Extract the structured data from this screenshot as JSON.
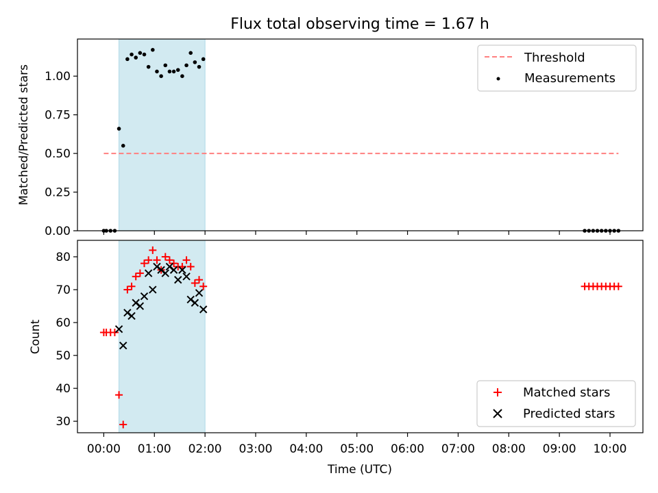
{
  "chart_data": [
    {
      "type": "scatter",
      "title": "Flux total observing time = 1.67 h",
      "xlabel": "",
      "ylabel": "Matched/Predicted stars",
      "ylim": [
        0,
        1.24
      ],
      "xlim_hours": [
        -0.52,
        10.65
      ],
      "yticks": [
        0.0,
        0.25,
        0.5,
        0.75,
        1.0
      ],
      "ytick_labels": [
        "0.00",
        "0.25",
        "0.50",
        "0.75",
        "1.00"
      ],
      "highlight_span": {
        "start": "00:18",
        "end": "02:00",
        "color": "#add8e6"
      },
      "threshold": {
        "name": "Threshold",
        "y": 0.5,
        "x_start": "00:00",
        "x_end": "10:10",
        "color": "#ff7f7f",
        "style": "dashed"
      },
      "legend": {
        "position": "top-right",
        "entries": [
          "Threshold",
          "Measurements"
        ]
      },
      "series": [
        {
          "name": "Measurements",
          "color": "#000000",
          "marker": "dot",
          "x": [
            "00:00",
            "00:03",
            "00:08",
            "00:13",
            "00:18",
            "00:23",
            "00:28",
            "00:33",
            "00:38",
            "00:43",
            "00:48",
            "00:53",
            "00:58",
            "01:03",
            "01:08",
            "01:13",
            "01:18",
            "01:23",
            "01:28",
            "01:33",
            "01:38",
            "01:43",
            "01:48",
            "01:53",
            "01:58",
            "09:30",
            "09:35",
            "09:40",
            "09:45",
            "09:50",
            "09:55",
            "10:00",
            "10:05",
            "10:10"
          ],
          "y": [
            0,
            0,
            0,
            0,
            0.66,
            0.55,
            1.11,
            1.14,
            1.12,
            1.15,
            1.14,
            1.06,
            1.17,
            1.03,
            1.0,
            1.07,
            1.03,
            1.03,
            1.04,
            1.0,
            1.07,
            1.15,
            1.09,
            1.06,
            1.11,
            0,
            0,
            0,
            0,
            0,
            0,
            0,
            0,
            0
          ]
        }
      ]
    },
    {
      "type": "scatter",
      "title": "",
      "xlabel": "Time (UTC)",
      "ylabel": "Count",
      "ylim": [
        26.5,
        85
      ],
      "xlim_hours": [
        -0.52,
        10.65
      ],
      "yticks": [
        30,
        40,
        50,
        60,
        70,
        80
      ],
      "ytick_labels": [
        "30",
        "40",
        "50",
        "60",
        "70",
        "80"
      ],
      "xtick_labels": [
        "00:00",
        "01:00",
        "02:00",
        "03:00",
        "04:00",
        "05:00",
        "06:00",
        "07:00",
        "08:00",
        "09:00",
        "10:00"
      ],
      "highlight_span": {
        "start": "00:18",
        "end": "02:00",
        "color": "#add8e6"
      },
      "legend": {
        "position": "bottom-right",
        "entries": [
          "Matched stars",
          "Predicted stars"
        ]
      },
      "series": [
        {
          "name": "Matched stars",
          "color": "#ff0000",
          "marker": "plus",
          "x": [
            "00:00",
            "00:03",
            "00:08",
            "00:13",
            "00:18",
            "00:23",
            "00:28",
            "00:33",
            "00:38",
            "00:43",
            "00:48",
            "00:53",
            "00:58",
            "01:03",
            "01:08",
            "01:13",
            "01:18",
            "01:23",
            "01:28",
            "01:33",
            "01:38",
            "01:43",
            "01:48",
            "01:53",
            "01:58",
            "09:30",
            "09:35",
            "09:40",
            "09:45",
            "09:50",
            "09:55",
            "10:00",
            "10:05",
            "10:10"
          ],
          "y": [
            57,
            57,
            57,
            57,
            38,
            29,
            70,
            71,
            74,
            75,
            78,
            79,
            82,
            79,
            76,
            80,
            79,
            78,
            77,
            77,
            79,
            77,
            72,
            73,
            71,
            71,
            71,
            71,
            71,
            71,
            71,
            71,
            71,
            71
          ]
        },
        {
          "name": "Predicted stars",
          "color": "#000000",
          "marker": "x",
          "x": [
            "00:18",
            "00:23",
            "00:28",
            "00:33",
            "00:38",
            "00:43",
            "00:48",
            "00:53",
            "00:58",
            "01:03",
            "01:08",
            "01:13",
            "01:18",
            "01:23",
            "01:28",
            "01:33",
            "01:38",
            "01:43",
            "01:48",
            "01:53",
            "01:58"
          ],
          "y": [
            58,
            53,
            63,
            62,
            66,
            65,
            68,
            75,
            70,
            77,
            76,
            75,
            77,
            76,
            73,
            76,
            74,
            67,
            66,
            69,
            64
          ]
        }
      ]
    }
  ]
}
